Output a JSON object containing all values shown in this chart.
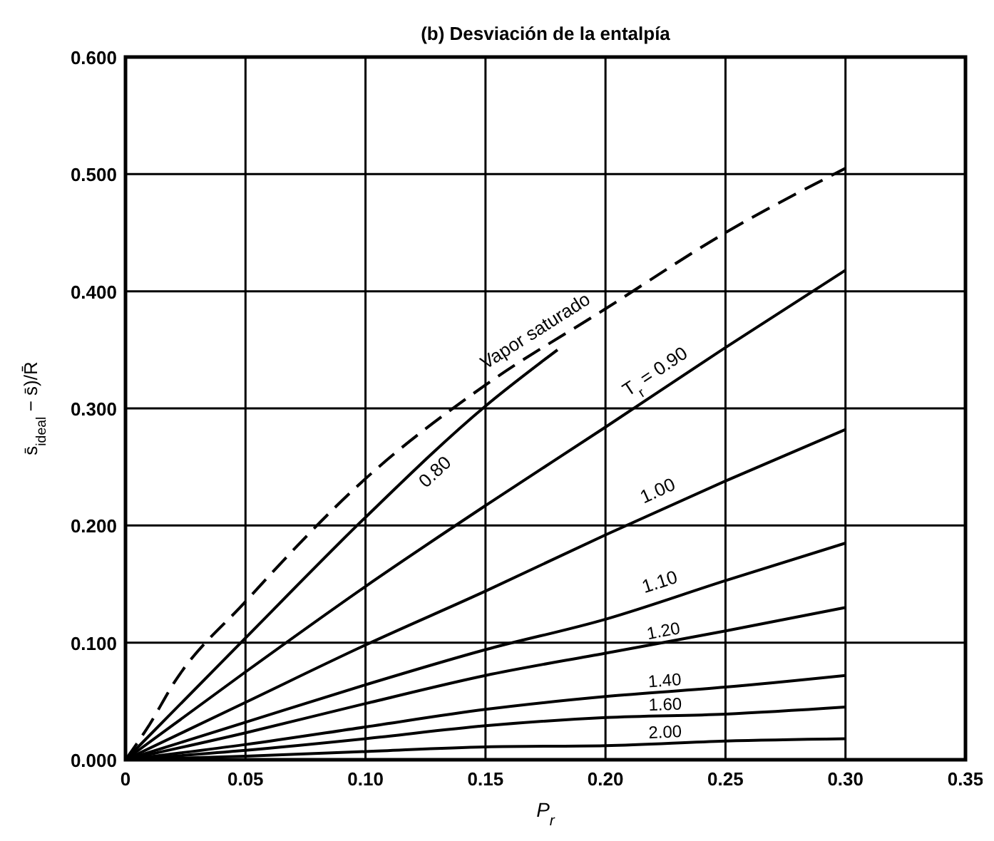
{
  "chart_data": {
    "type": "line",
    "title": "(b) Desviación de la entalpía",
    "xlabel": "P$_{r}$",
    "ylabel": "s̄$_{ideal}$ − s̄)/R̄",
    "xlim": [
      0,
      0.35
    ],
    "ylim": [
      0,
      0.6
    ],
    "xticks": [
      0,
      {
        "value": 0.05,
        "label": "0.05"
      },
      {
        "value": 0.1,
        "label": "0.10"
      },
      {
        "value": 0.15,
        "label": "0.15"
      },
      {
        "value": 0.2,
        "label": "0.20"
      },
      {
        "value": 0.25,
        "label": "0.25"
      },
      {
        "value": 0.3,
        "label": "0.30"
      },
      {
        "value": 0.35,
        "label": "0.35"
      }
    ],
    "yticks": [
      {
        "value": 0,
        "label": "0.000"
      },
      {
        "value": 0.1,
        "label": "0.100"
      },
      {
        "value": 0.2,
        "label": "0.200"
      },
      {
        "value": 0.3,
        "label": "0.300"
      },
      {
        "value": 0.4,
        "label": "0.400"
      },
      {
        "value": 0.5,
        "label": "0.500"
      },
      {
        "value": 0.6,
        "label": "0.600"
      }
    ],
    "grid": true,
    "marker": "none",
    "series": [
      {
        "name": "Vapor saturado",
        "color": "#000000",
        "line_style": "dashed",
        "x": [
          0,
          0.01,
          0.02,
          0.05,
          0.1,
          0.15,
          0.2,
          0.25,
          0.3
        ],
        "values": [
          0,
          0.03,
          0.065,
          0.135,
          0.24,
          0.32,
          0.385,
          0.45,
          0.505
        ]
      },
      {
        "name": "0.80",
        "color": "#000000",
        "line_style": "solid",
        "x": [
          0,
          0.05,
          0.1,
          0.15,
          0.18
        ],
        "values": [
          0,
          0.104,
          0.207,
          0.302,
          0.35
        ]
      },
      {
        "name": "T$_{r}$ = 0.90",
        "color": "#000000",
        "line_style": "solid",
        "x": [
          0,
          0.05,
          0.1,
          0.15,
          0.2,
          0.25,
          0.3
        ],
        "values": [
          0,
          0.075,
          0.148,
          0.217,
          0.284,
          0.352,
          0.418
        ]
      },
      {
        "name": "1.00",
        "color": "#000000",
        "line_style": "solid",
        "x": [
          0,
          0.05,
          0.1,
          0.15,
          0.2,
          0.25,
          0.3
        ],
        "values": [
          0,
          0.049,
          0.098,
          0.144,
          0.192,
          0.238,
          0.282
        ]
      },
      {
        "name": "1.10",
        "color": "#000000",
        "line_style": "solid",
        "x": [
          0,
          0.05,
          0.1,
          0.15,
          0.2,
          0.25,
          0.3
        ],
        "values": [
          0,
          0.032,
          0.064,
          0.094,
          0.12,
          0.153,
          0.185
        ]
      },
      {
        "name": "1.20",
        "color": "#000000",
        "line_style": "solid",
        "x": [
          0,
          0.05,
          0.1,
          0.15,
          0.2,
          0.25,
          0.3
        ],
        "values": [
          0,
          0.023,
          0.048,
          0.072,
          0.091,
          0.11,
          0.13
        ]
      },
      {
        "name": "1.40",
        "color": "#000000",
        "line_style": "solid",
        "x": [
          0,
          0.05,
          0.1,
          0.15,
          0.2,
          0.25,
          0.3
        ],
        "values": [
          0,
          0.013,
          0.028,
          0.043,
          0.054,
          0.062,
          0.072
        ]
      },
      {
        "name": "1.60",
        "color": "#000000",
        "line_style": "solid",
        "x": [
          0,
          0.05,
          0.1,
          0.15,
          0.2,
          0.25,
          0.3
        ],
        "values": [
          0,
          0.008,
          0.018,
          0.029,
          0.036,
          0.039,
          0.045
        ]
      },
      {
        "name": "2.00",
        "color": "#000000",
        "line_style": "solid",
        "x": [
          0,
          0.05,
          0.1,
          0.15,
          0.2,
          0.25,
          0.3
        ],
        "values": [
          0,
          0.003,
          0.007,
          0.011,
          0.012,
          0.016,
          0.018
        ]
      }
    ]
  }
}
